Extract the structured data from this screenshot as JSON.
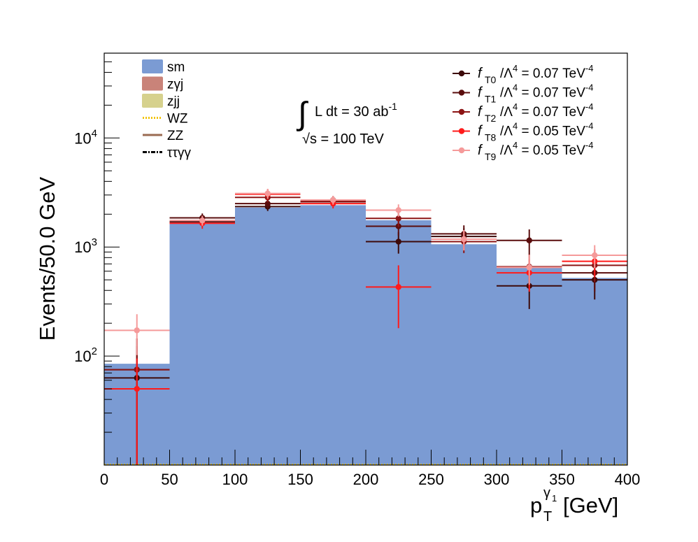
{
  "chart_data": {
    "type": "bar",
    "ylabel": "Events/50.0 GeV",
    "xlabel": {
      "base": "p",
      "sub": "T",
      "sup_base": "γ",
      "sup_sub": "1",
      "unit": "[GeV]"
    },
    "xlim": [
      0,
      400
    ],
    "ylim": [
      10,
      60000
    ],
    "yscale": "log",
    "x_ticks": [
      0,
      50,
      100,
      150,
      200,
      250,
      300,
      350,
      400
    ],
    "x_tick_labels": [
      "0",
      "50",
      "100",
      "150",
      "200",
      "250",
      "300",
      "350",
      "400"
    ],
    "y_ticks": [
      100,
      1000,
      10000
    ],
    "y_tick_labels": [
      {
        "base": "10",
        "exp": "2"
      },
      {
        "base": "10",
        "exp": "3"
      },
      {
        "base": "10",
        "exp": "4"
      }
    ],
    "bin_edges": [
      0,
      50,
      100,
      150,
      200,
      250,
      300,
      350,
      400
    ],
    "bin_centers": [
      25,
      75,
      125,
      175,
      225,
      275,
      325,
      375
    ],
    "annotation": {
      "integral": "∫",
      "lumi": "L dt = 30 ab",
      "lumi_exp": "-1",
      "energy_sqrt": "√",
      "energy": "s = 100 TeV"
    },
    "background_legend": [
      {
        "name": "sm",
        "color": "#7b9bd3",
        "style": "fill"
      },
      {
        "name": "zγj",
        "color": "#c98379",
        "style": "fill"
      },
      {
        "name": "zjj",
        "color": "#d6d18d",
        "style": "fill"
      },
      {
        "name": "WZ",
        "color": "#f3c300",
        "style": "dotted"
      },
      {
        "name": "ZZ",
        "color": "#9a6b52",
        "style": "line"
      },
      {
        "name": "ττγγ",
        "color": "#000000",
        "style": "dashdot"
      }
    ],
    "stack": {
      "name": "sm",
      "color": "#7b9bd3",
      "values": [
        85,
        1650,
        2300,
        2420,
        1760,
        1060,
        650,
        520
      ]
    },
    "series": [
      {
        "name": "f_T0/Λ^4 = 0.07 TeV^-4",
        "label_parts": {
          "f": "f",
          "sub": "T0",
          "lambda": "/Λ",
          "lambda_exp": "4",
          "value": " = 0.07 TeV",
          "value_exp": "-4"
        },
        "color": "#3d0a0a",
        "values": [
          63,
          1700,
          2350,
          2600,
          1120,
          1250,
          440,
          500
        ],
        "errors": [
          60,
          150,
          210,
          220,
          250,
          240,
          170,
          170
        ]
      },
      {
        "name": "f_T1/Λ^4 = 0.07 TeV^-4",
        "label_parts": {
          "f": "f",
          "sub": "T1",
          "lambda": "/Λ",
          "lambda_exp": "4",
          "value": " = 0.07 TeV",
          "value_exp": "-4"
        },
        "color": "#5a0d0d",
        "values": [
          75,
          1850,
          2500,
          2700,
          1550,
          1320,
          1150,
          580
        ],
        "errors": [
          70,
          180,
          230,
          230,
          280,
          260,
          300,
          190
        ]
      },
      {
        "name": "f_T2/Λ^4 = 0.07 TeV^-4",
        "label_parts": {
          "f": "f",
          "sub": "T2",
          "lambda": "/Λ",
          "lambda_exp": "4",
          "value": " = 0.07 TeV",
          "value_exp": "-4"
        },
        "color": "#8c1515",
        "values": [
          75,
          1750,
          2850,
          2620,
          1830,
          1120,
          660,
          680
        ],
        "errors": [
          70,
          170,
          270,
          230,
          300,
          240,
          200,
          200
        ]
      },
      {
        "name": "f_T8/Λ^4 = 0.05 TeV^-4",
        "label_parts": {
          "f": "f",
          "sub": "T8",
          "lambda": "/Λ",
          "lambda_exp": "4",
          "value": " = 0.05 TeV",
          "value_exp": "-4"
        },
        "color": "#ff1a1a",
        "values": [
          50,
          1650,
          3050,
          2500,
          430,
          1180,
          580,
          740
        ],
        "errors": [
          45,
          180,
          330,
          240,
          250,
          250,
          190,
          210
        ]
      },
      {
        "name": "f_T9/Λ^4 = 0.05 TeV^-4",
        "label_parts": {
          "f": "f",
          "sub": "T9",
          "lambda": "/Λ",
          "lambda_exp": "4",
          "value": " = 0.05 TeV",
          "value_exp": "-4"
        },
        "color": "#f59a9a",
        "values": [
          172,
          1750,
          3100,
          2700,
          2180,
          1180,
          650,
          840
        ],
        "errors": [
          70,
          180,
          320,
          250,
          280,
          250,
          200,
          200
        ]
      }
    ]
  }
}
